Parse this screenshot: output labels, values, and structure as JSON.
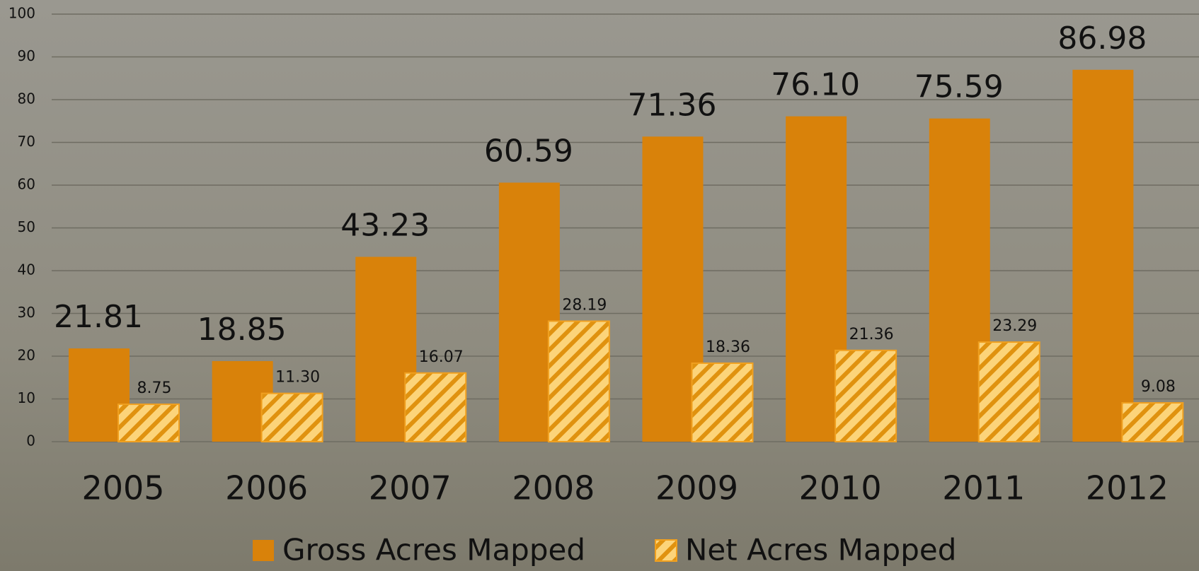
{
  "chart_data": {
    "type": "bar",
    "categories": [
      "2005",
      "2006",
      "2007",
      "2008",
      "2009",
      "2010",
      "2011",
      "2012"
    ],
    "series": [
      {
        "name": "Gross Acres Mapped",
        "color": "#d9820a",
        "values": [
          21.81,
          18.85,
          43.23,
          60.59,
          71.36,
          76.1,
          75.59,
          86.98
        ],
        "value_labels": [
          "21.81",
          "18.85",
          "43.23",
          "60.59",
          "71.36",
          "76.10",
          "75.59",
          "86.98"
        ]
      },
      {
        "name": "Net Acres Mapped",
        "color": "#fcd47a",
        "values": [
          8.75,
          11.3,
          16.07,
          28.19,
          18.36,
          21.36,
          23.29,
          9.08
        ],
        "value_labels": [
          "8.75",
          "11.30",
          "16.07",
          "28.19",
          "18.36",
          "21.36",
          "23.29",
          "9.08"
        ]
      }
    ],
    "ylim": [
      0,
      100
    ],
    "yticks": [
      0,
      10,
      20,
      30,
      40,
      50,
      60,
      70,
      80,
      90,
      100
    ],
    "grid": true,
    "legend": "bottom"
  }
}
